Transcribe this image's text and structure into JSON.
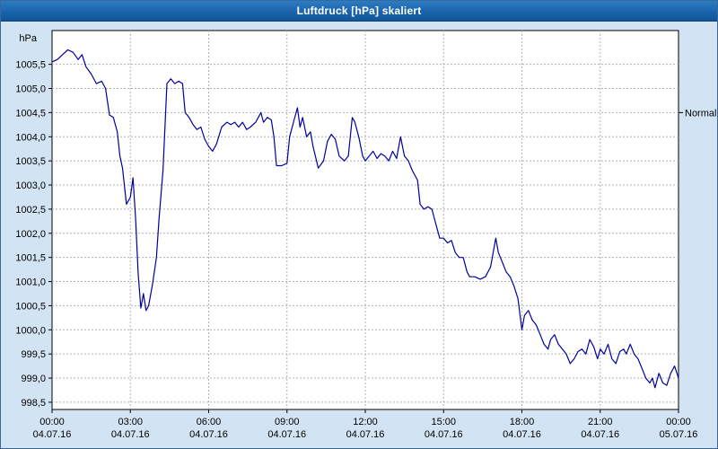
{
  "window": {
    "title": "Luftdruck [hPa] skaliert"
  },
  "chart_data": {
    "type": "line",
    "title": "Luftdruck [hPa] skaliert",
    "ylabel": "hPa",
    "xlabel": "",
    "ylim": [
      998.35,
      1006.2
    ],
    "xlim": [
      0,
      24
    ],
    "grid": "dashed",
    "legend": "none",
    "colors": {
      "line": "#0000a0",
      "grid": "#b0b0b0",
      "plot_background": "#ffffff",
      "window_background": "#d2e3f3",
      "title_bar": "#1a64ad"
    },
    "y_ticks": [
      {
        "value": 1005.5,
        "label": "1005,5"
      },
      {
        "value": 1005.0,
        "label": "1005,0"
      },
      {
        "value": 1004.5,
        "label": "1004,5"
      },
      {
        "value": 1004.0,
        "label": "1004,0"
      },
      {
        "value": 1003.5,
        "label": "1003,5"
      },
      {
        "value": 1003.0,
        "label": "1003,0"
      },
      {
        "value": 1002.5,
        "label": "1002,5"
      },
      {
        "value": 1002.0,
        "label": "1002,0"
      },
      {
        "value": 1001.5,
        "label": "1001,5"
      },
      {
        "value": 1001.0,
        "label": "1001,0"
      },
      {
        "value": 1000.5,
        "label": "1000,5"
      },
      {
        "value": 1000.0,
        "label": "1000,0"
      },
      {
        "value": 999.5,
        "label": "999,5"
      },
      {
        "value": 999.0,
        "label": "999,0"
      },
      {
        "value": 998.5,
        "label": "998,5"
      }
    ],
    "x_ticks": [
      {
        "hour": 0,
        "time": "00:00",
        "date": "04.07.16"
      },
      {
        "hour": 3,
        "time": "03:00",
        "date": "04.07.16"
      },
      {
        "hour": 6,
        "time": "06:00",
        "date": "04.07.16"
      },
      {
        "hour": 9,
        "time": "09:00",
        "date": "04.07.16"
      },
      {
        "hour": 12,
        "time": "12:00",
        "date": "04.07.16"
      },
      {
        "hour": 15,
        "time": "15:00",
        "date": "04.07.16"
      },
      {
        "hour": 18,
        "time": "18:00",
        "date": "04.07.16"
      },
      {
        "hour": 21,
        "time": "21:00",
        "date": "04.07.16"
      },
      {
        "hour": 24,
        "time": "00:00",
        "date": "05.07.16"
      }
    ],
    "annotations": [
      {
        "label": "Normal",
        "value": 1004.5,
        "side": "right"
      }
    ],
    "series": [
      {
        "name": "Luftdruck",
        "points": [
          [
            0,
            1005.55
          ],
          [
            0.2,
            1005.6
          ],
          [
            0.4,
            1005.7
          ],
          [
            0.6,
            1005.8
          ],
          [
            0.8,
            1005.75
          ],
          [
            1.0,
            1005.6
          ],
          [
            1.15,
            1005.7
          ],
          [
            1.3,
            1005.45
          ],
          [
            1.5,
            1005.3
          ],
          [
            1.7,
            1005.1
          ],
          [
            1.9,
            1005.15
          ],
          [
            2.05,
            1005.0
          ],
          [
            2.2,
            1004.45
          ],
          [
            2.35,
            1004.4
          ],
          [
            2.5,
            1004.1
          ],
          [
            2.6,
            1003.6
          ],
          [
            2.7,
            1003.35
          ],
          [
            2.85,
            1002.6
          ],
          [
            3.0,
            1002.75
          ],
          [
            3.1,
            1003.15
          ],
          [
            3.2,
            1002.3
          ],
          [
            3.3,
            1001.15
          ],
          [
            3.4,
            1000.45
          ],
          [
            3.5,
            1000.75
          ],
          [
            3.6,
            1000.4
          ],
          [
            3.7,
            1000.5
          ],
          [
            3.85,
            1000.95
          ],
          [
            4.0,
            1001.5
          ],
          [
            4.1,
            1002.3
          ],
          [
            4.25,
            1003.3
          ],
          [
            4.4,
            1005.1
          ],
          [
            4.55,
            1005.2
          ],
          [
            4.7,
            1005.1
          ],
          [
            4.85,
            1005.15
          ],
          [
            5.0,
            1005.1
          ],
          [
            5.1,
            1004.5
          ],
          [
            5.25,
            1004.4
          ],
          [
            5.4,
            1004.25
          ],
          [
            5.55,
            1004.15
          ],
          [
            5.7,
            1004.2
          ],
          [
            5.85,
            1003.95
          ],
          [
            6.0,
            1003.8
          ],
          [
            6.15,
            1003.7
          ],
          [
            6.3,
            1003.85
          ],
          [
            6.5,
            1004.2
          ],
          [
            6.7,
            1004.3
          ],
          [
            6.85,
            1004.25
          ],
          [
            7.0,
            1004.3
          ],
          [
            7.15,
            1004.2
          ],
          [
            7.3,
            1004.3
          ],
          [
            7.45,
            1004.15
          ],
          [
            7.6,
            1004.2
          ],
          [
            7.8,
            1004.3
          ],
          [
            8.0,
            1004.5
          ],
          [
            8.1,
            1004.3
          ],
          [
            8.25,
            1004.4
          ],
          [
            8.4,
            1004.35
          ],
          [
            8.5,
            1004.0
          ],
          [
            8.6,
            1003.4
          ],
          [
            8.8,
            1003.4
          ],
          [
            9.0,
            1003.45
          ],
          [
            9.1,
            1004.0
          ],
          [
            9.25,
            1004.3
          ],
          [
            9.4,
            1004.6
          ],
          [
            9.5,
            1004.2
          ],
          [
            9.6,
            1004.4
          ],
          [
            9.75,
            1004.0
          ],
          [
            9.9,
            1004.1
          ],
          [
            10.0,
            1003.8
          ],
          [
            10.2,
            1003.35
          ],
          [
            10.4,
            1003.5
          ],
          [
            10.55,
            1003.9
          ],
          [
            10.7,
            1004.05
          ],
          [
            10.85,
            1003.95
          ],
          [
            11.0,
            1003.6
          ],
          [
            11.2,
            1003.5
          ],
          [
            11.35,
            1003.6
          ],
          [
            11.5,
            1004.4
          ],
          [
            11.6,
            1004.3
          ],
          [
            11.75,
            1004.0
          ],
          [
            11.9,
            1003.6
          ],
          [
            12.0,
            1003.5
          ],
          [
            12.15,
            1003.6
          ],
          [
            12.3,
            1003.7
          ],
          [
            12.45,
            1003.55
          ],
          [
            12.6,
            1003.65
          ],
          [
            12.75,
            1003.6
          ],
          [
            12.9,
            1003.5
          ],
          [
            13.05,
            1003.7
          ],
          [
            13.2,
            1003.55
          ],
          [
            13.35,
            1004.0
          ],
          [
            13.5,
            1003.6
          ],
          [
            13.65,
            1003.5
          ],
          [
            13.8,
            1003.3
          ],
          [
            14.0,
            1003.1
          ],
          [
            14.1,
            1002.6
          ],
          [
            14.25,
            1002.5
          ],
          [
            14.4,
            1002.55
          ],
          [
            14.55,
            1002.5
          ],
          [
            14.7,
            1002.2
          ],
          [
            14.85,
            1001.9
          ],
          [
            15.0,
            1001.9
          ],
          [
            15.15,
            1001.8
          ],
          [
            15.3,
            1001.85
          ],
          [
            15.45,
            1001.6
          ],
          [
            15.6,
            1001.5
          ],
          [
            15.75,
            1001.5
          ],
          [
            15.9,
            1001.2
          ],
          [
            16.0,
            1001.1
          ],
          [
            16.2,
            1001.1
          ],
          [
            16.4,
            1001.05
          ],
          [
            16.6,
            1001.1
          ],
          [
            16.8,
            1001.3
          ],
          [
            17.0,
            1001.9
          ],
          [
            17.1,
            1001.6
          ],
          [
            17.25,
            1001.4
          ],
          [
            17.4,
            1001.2
          ],
          [
            17.55,
            1001.1
          ],
          [
            17.7,
            1000.9
          ],
          [
            17.85,
            1000.65
          ],
          [
            18.0,
            1000.0
          ],
          [
            18.1,
            1000.3
          ],
          [
            18.25,
            1000.4
          ],
          [
            18.4,
            1000.2
          ],
          [
            18.55,
            1000.1
          ],
          [
            18.7,
            999.9
          ],
          [
            18.85,
            999.7
          ],
          [
            19.0,
            999.6
          ],
          [
            19.1,
            999.8
          ],
          [
            19.25,
            999.9
          ],
          [
            19.4,
            999.7
          ],
          [
            19.55,
            999.6
          ],
          [
            19.7,
            999.5
          ],
          [
            19.85,
            999.3
          ],
          [
            20.0,
            999.4
          ],
          [
            20.15,
            999.55
          ],
          [
            20.3,
            999.6
          ],
          [
            20.45,
            999.5
          ],
          [
            20.6,
            999.8
          ],
          [
            20.75,
            999.65
          ],
          [
            20.9,
            999.4
          ],
          [
            21.0,
            999.6
          ],
          [
            21.15,
            999.5
          ],
          [
            21.3,
            999.7
          ],
          [
            21.45,
            999.4
          ],
          [
            21.6,
            999.3
          ],
          [
            21.75,
            999.55
          ],
          [
            21.9,
            999.6
          ],
          [
            22.0,
            999.5
          ],
          [
            22.15,
            999.7
          ],
          [
            22.3,
            999.5
          ],
          [
            22.45,
            999.4
          ],
          [
            22.6,
            999.2
          ],
          [
            22.75,
            999.0
          ],
          [
            22.9,
            998.9
          ],
          [
            23.0,
            999.0
          ],
          [
            23.1,
            998.8
          ],
          [
            23.25,
            999.1
          ],
          [
            23.4,
            998.9
          ],
          [
            23.55,
            998.85
          ],
          [
            23.7,
            999.1
          ],
          [
            23.85,
            999.25
          ],
          [
            24.0,
            999.0
          ]
        ]
      }
    ]
  }
}
